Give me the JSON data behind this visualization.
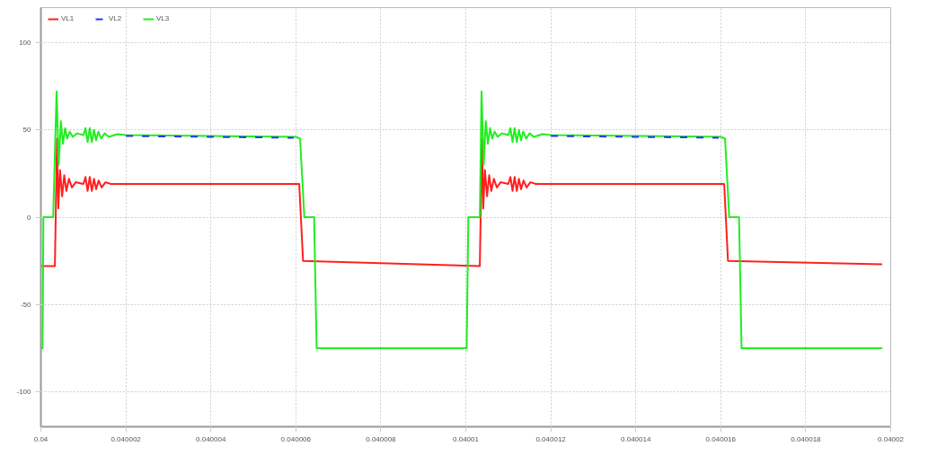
{
  "chart_data": {
    "type": "line",
    "xlim": [
      0.04,
      0.04002
    ],
    "ylim": [
      -120,
      120
    ],
    "xticks": [
      0.04,
      0.040002,
      0.040004,
      0.040006,
      0.040008,
      0.04001,
      0.040012,
      0.040014,
      0.040016,
      0.040018,
      0.04002
    ],
    "yticks": [
      -100,
      -50,
      0,
      50,
      100
    ],
    "grid": true,
    "legend": "top left",
    "marker": "none",
    "line_style": "solid",
    "series": [
      {
        "name": "VL1",
        "color": "#ff2020",
        "x": [
          0.04,
          0.04000033,
          0.04000038,
          0.04000041,
          0.04000045,
          0.0400005,
          0.04000055,
          0.0400006,
          0.04000066,
          0.04000073,
          0.04000082,
          0.040001,
          0.04000105,
          0.0400011,
          0.04000115,
          0.0400012,
          0.04000125,
          0.0400013,
          0.04000136,
          0.04000143,
          0.04000152,
          0.04000165,
          0.04000608,
          0.04000617,
          0.04001033,
          0.04001038,
          0.04001041,
          0.04001045,
          0.0400105,
          0.04001055,
          0.0400106,
          0.04001066,
          0.04001073,
          0.04001082,
          0.040011,
          0.04001105,
          0.0400111,
          0.04001115,
          0.0400112,
          0.04001125,
          0.0400113,
          0.04001136,
          0.04001143,
          0.04001152,
          0.04001165,
          0.04001608,
          0.04001617,
          0.0400198
        ],
        "values": [
          -28,
          -28,
          45,
          5,
          27,
          12,
          24,
          15,
          22,
          17,
          20,
          19,
          23,
          15,
          23,
          15,
          22,
          16,
          21,
          17,
          20,
          19,
          19,
          -25,
          -28,
          45,
          5,
          27,
          12,
          24,
          15,
          22,
          17,
          20,
          19,
          23,
          15,
          23,
          15,
          22,
          16,
          21,
          17,
          20,
          19,
          19,
          -25,
          -27
        ]
      },
      {
        "name": "VL3",
        "color": "#20ee20",
        "x": [
          0.04,
          0.04000004,
          0.04000006,
          0.04000029,
          0.04000037,
          0.04000042,
          0.04000047,
          0.04000052,
          0.04000057,
          0.04000062,
          0.04000068,
          0.04000075,
          0.04000085,
          0.040001,
          0.04000105,
          0.0400011,
          0.04000115,
          0.0400012,
          0.04000125,
          0.0400013,
          0.04000135,
          0.04000142,
          0.0400015,
          0.0400016,
          0.0400018,
          0.040002,
          0.040006,
          0.0400061,
          0.0400062,
          0.04000643,
          0.04000649,
          0.04001002,
          0.04001006,
          0.04001033,
          0.04001037,
          0.04001042,
          0.04001047,
          0.04001052,
          0.04001057,
          0.04001062,
          0.04001068,
          0.04001075,
          0.04001085,
          0.040011,
          0.04001105,
          0.0400111,
          0.04001115,
          0.0400112,
          0.04001125,
          0.0400113,
          0.04001135,
          0.04001142,
          0.0400115,
          0.0400116,
          0.0400118,
          0.040012,
          0.040016,
          0.0400161,
          0.0400162,
          0.04001643,
          0.04001649,
          0.0400198
        ],
        "values": [
          -75,
          -75,
          0,
          0,
          72,
          30,
          55,
          42,
          51,
          45,
          49,
          46,
          48,
          47,
          51,
          43,
          51,
          43,
          50,
          44,
          49,
          45,
          48,
          46,
          47.5,
          47,
          46,
          45,
          0,
          0,
          -75,
          -75,
          0,
          0,
          72,
          30,
          55,
          42,
          51,
          45,
          49,
          46,
          48,
          47,
          51,
          43,
          51,
          43,
          50,
          44,
          49,
          45,
          48,
          46,
          47.5,
          47,
          46,
          45,
          0,
          0,
          -75,
          -75
        ]
      },
      {
        "name": "VL2",
        "color": "#3030ff",
        "line_style": "dashed",
        "x": [
          0.040002,
          0.04000595,
          0.04000596,
          0.040012,
          0.04001595
        ],
        "values": [
          46.5,
          45.5,
          null,
          46.5,
          45.5
        ]
      }
    ]
  }
}
